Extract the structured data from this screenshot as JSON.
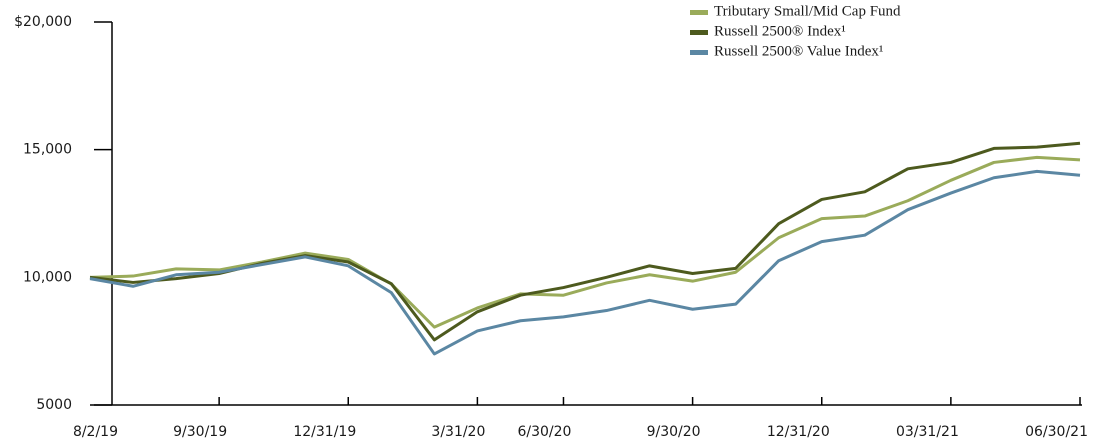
{
  "chart_data": {
    "type": "line",
    "categories": [
      "8/2/19",
      null,
      null,
      "9/30/19",
      null,
      null,
      "12/31/19",
      null,
      null,
      "3/31/20",
      null,
      "6/30/20",
      null,
      null,
      "9/30/20",
      null,
      null,
      "12/31/20",
      null,
      null,
      "03/31/21",
      null,
      null,
      "06/30/21"
    ],
    "series": [
      {
        "name": "Tributary Small/Mid Cap Fund",
        "color": "#9aab5a",
        "values": [
          10000,
          10050,
          10330,
          10290,
          10600,
          10950,
          10700,
          9740,
          8050,
          8800,
          9350,
          9300,
          9780,
          10100,
          9850,
          10200,
          11550,
          12300,
          12400,
          13000,
          13800,
          14500,
          14700,
          14600
        ]
      },
      {
        "name": "Russell 2500® Index¹",
        "color": "#4d5a1e",
        "values": [
          10000,
          9800,
          9950,
          10150,
          10550,
          10850,
          10600,
          9750,
          7550,
          8650,
          9300,
          9600,
          10000,
          10450,
          10150,
          10350,
          12100,
          13050,
          13350,
          14250,
          14500,
          15050,
          15100,
          15250
        ]
      },
      {
        "name": "Russell 2500® Value Index¹",
        "color": "#5b87a3",
        "values": [
          9950,
          9650,
          10100,
          10200,
          10500,
          10800,
          10450,
          9400,
          7000,
          7900,
          8300,
          8450,
          8700,
          9100,
          8750,
          8950,
          10650,
          11400,
          11650,
          12650,
          13300,
          13900,
          14150,
          14000
        ]
      }
    ],
    "ylim": [
      5000,
      20000
    ],
    "yticks": [
      5000,
      {
        "value": 10000,
        "label": "10,000"
      },
      {
        "value": 15000,
        "label": "15,000"
      },
      {
        "value": 20000,
        "label": "$20,000"
      }
    ],
    "legend": "top-right"
  }
}
